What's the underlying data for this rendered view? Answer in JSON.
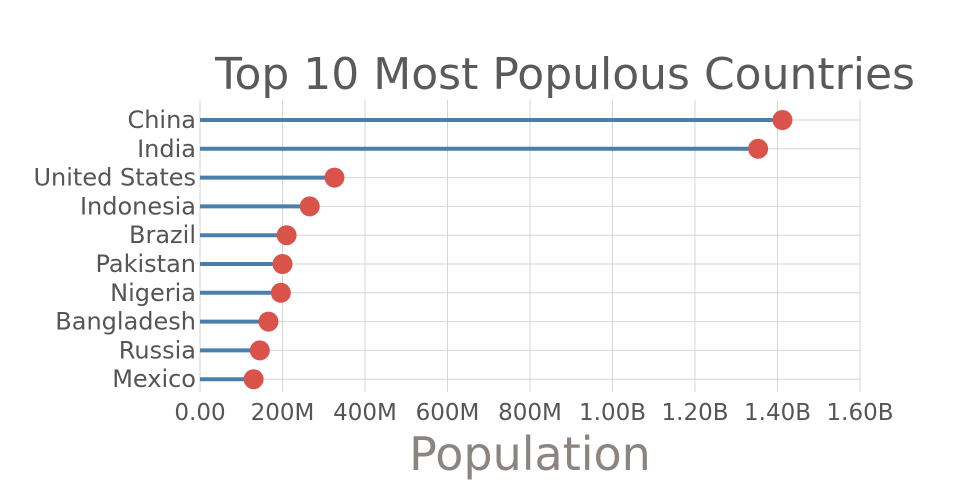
{
  "chart_data": {
    "type": "scatter",
    "style": "lollipop",
    "title": "Top 10 Most Populous Countries",
    "xlabel": "Population",
    "ylabel": "",
    "xlim": [
      0,
      1600000000
    ],
    "x_ticks": [
      0,
      200000000,
      400000000,
      600000000,
      800000000,
      1000000000,
      1200000000,
      1400000000,
      1600000000
    ],
    "x_tick_labels": [
      "0.00",
      "200M",
      "400M",
      "600M",
      "800M",
      "1.00B",
      "1.20B",
      "1.40B",
      "1.60B"
    ],
    "grid": true,
    "categories": [
      "China",
      "India",
      "United States",
      "Indonesia",
      "Brazil",
      "Pakistan",
      "Nigeria",
      "Bangladesh",
      "Russia",
      "Mexico"
    ],
    "values": [
      1412000000,
      1353000000,
      326000000,
      266000000,
      210000000,
      200000000,
      196000000,
      166000000,
      145000000,
      130000000
    ],
    "colors": {
      "stem": "#4a7fad",
      "dot": "#d9534a",
      "grid": "#d6d6d6"
    }
  }
}
